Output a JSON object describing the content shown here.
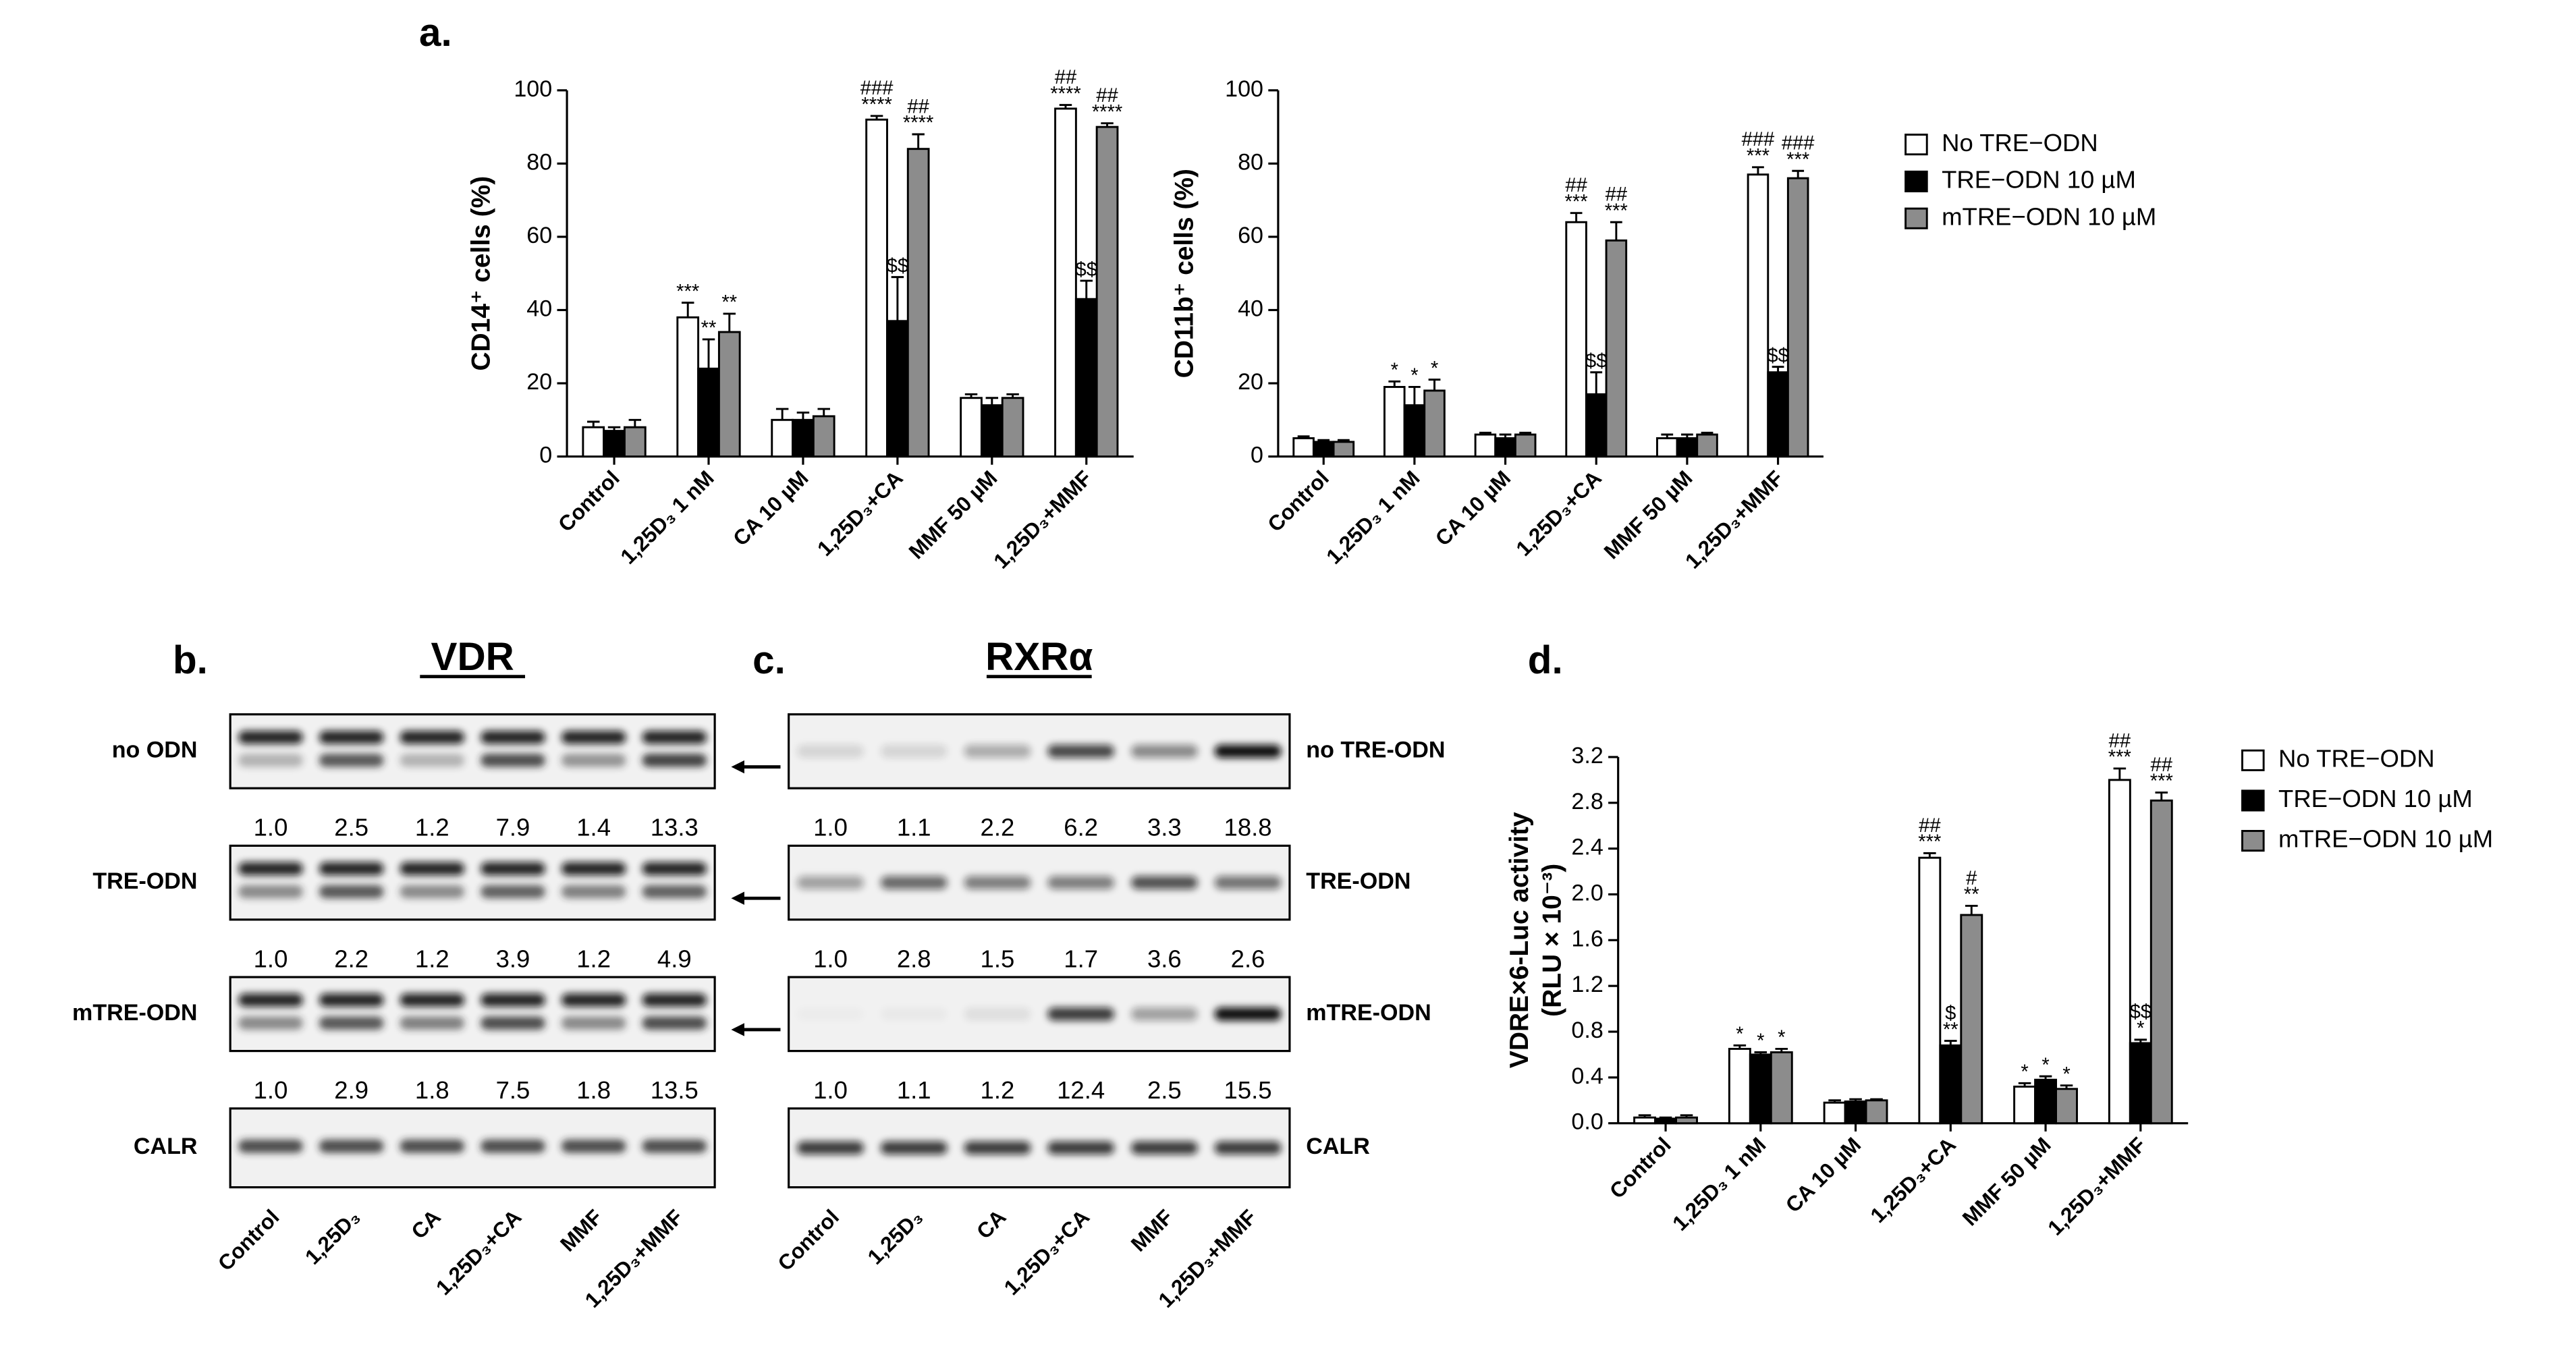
{
  "panel_labels": {
    "a": "a.",
    "b": "b.",
    "c": "c.",
    "d": "d."
  },
  "chart_data": [
    {
      "type": "bar",
      "ylabel": "CD14⁺ cells (%)",
      "categories": [
        "Control",
        "1,25D₃ 1 nM",
        "CA 10 µM",
        "1,25D₃+CA",
        "MMF 50 µM",
        "1,25D₃+MMF"
      ],
      "series": [
        {
          "color": "#ffffff",
          "values": [
            8,
            38,
            10,
            92,
            16,
            95
          ],
          "errors": [
            1.5,
            4,
            3,
            1,
            1,
            1
          ],
          "labels": [
            [],
            [
              "***"
            ],
            [],
            [
              "###",
              "****"
            ],
            [],
            [
              "##",
              "****"
            ]
          ]
        },
        {
          "color": "#000000",
          "values": [
            7,
            24,
            10,
            37,
            14,
            43
          ],
          "errors": [
            1,
            8,
            2,
            12,
            2,
            5
          ],
          "labels": [
            [],
            [
              "**"
            ],
            [],
            [
              "$$"
            ],
            [],
            [
              "$$"
            ]
          ]
        },
        {
          "color": "#8c8c8c",
          "values": [
            8,
            34,
            11,
            84,
            16,
            90
          ],
          "errors": [
            2,
            5,
            2,
            4,
            1,
            1
          ],
          "labels": [
            [],
            [
              "**"
            ],
            [],
            [
              "##",
              "****"
            ],
            [],
            [
              "##",
              "****"
            ]
          ]
        }
      ],
      "ylim": [
        0,
        100
      ],
      "yticks": [
        0,
        20,
        40,
        60,
        80,
        100
      ]
    },
    {
      "type": "bar",
      "ylabel": "CD11b⁺ cells (%)",
      "categories": [
        "Control",
        "1,25D₃ 1 nM",
        "CA 10 µM",
        "1,25D₃+CA",
        "MMF 50 µM",
        "1,25D₃+MMF"
      ],
      "series": [
        {
          "name": "No TRE−ODN",
          "color": "#ffffff",
          "values": [
            5,
            19,
            6,
            64,
            5,
            77
          ],
          "errors": [
            0.5,
            1.5,
            0.5,
            2.5,
            1,
            2
          ],
          "labels": [
            [],
            [
              "*"
            ],
            [],
            [
              "##",
              "***"
            ],
            [],
            [
              "###",
              "***"
            ]
          ]
        },
        {
          "name": "TRE−ODN 10 µM",
          "color": "#000000",
          "values": [
            4,
            14,
            5,
            17,
            5,
            23
          ],
          "errors": [
            0.5,
            5,
            1,
            6,
            1,
            1.5
          ],
          "labels": [
            [],
            [
              "*"
            ],
            [],
            [
              "$$"
            ],
            [],
            [
              "$$"
            ]
          ]
        },
        {
          "name": "mTRE−ODN 10 µM",
          "color": "#8c8c8c",
          "values": [
            4,
            18,
            6,
            59,
            6,
            76
          ],
          "errors": [
            0.5,
            3,
            0.5,
            5,
            0.5,
            2
          ],
          "labels": [
            [],
            [
              "*"
            ],
            [],
            [
              "##",
              "***"
            ],
            [],
            [
              "###",
              "***"
            ]
          ]
        }
      ],
      "ylim": [
        0,
        100
      ],
      "yticks": [
        0,
        20,
        40,
        60,
        80,
        100
      ]
    },
    {
      "type": "bar",
      "ylabel": [
        "VDRE×6-Luc activity",
        "(RLU × 10⁻³)"
      ],
      "categories": [
        "Control",
        "1,25D₃ 1 nM",
        "CA 10 µM",
        "1,25D₃+CA",
        "MMF 50 µM",
        "1,25D₃+MMF"
      ],
      "series": [
        {
          "name": "No TRE−ODN",
          "color": "#ffffff",
          "values": [
            0.05,
            0.65,
            0.18,
            2.32,
            0.32,
            3.0
          ],
          "errors": [
            0.02,
            0.03,
            0.02,
            0.04,
            0.03,
            0.1
          ],
          "labels": [
            [],
            [
              "*"
            ],
            [],
            [
              "##",
              "***"
            ],
            [
              "*"
            ],
            [
              "##",
              "***"
            ]
          ]
        },
        {
          "name": "TRE−ODN 10 µM",
          "color": "#000000",
          "values": [
            0.04,
            0.6,
            0.19,
            0.68,
            0.38,
            0.7
          ],
          "errors": [
            0.01,
            0.02,
            0.02,
            0.04,
            0.03,
            0.03
          ],
          "labels": [
            [],
            [
              "*"
            ],
            [],
            [
              "$",
              "**"
            ],
            [
              "*"
            ],
            [
              "$$",
              "*"
            ]
          ]
        },
        {
          "name": "mTRE−ODN 10 µM",
          "color": "#8c8c8c",
          "values": [
            0.05,
            0.62,
            0.2,
            1.82,
            0.3,
            2.82
          ],
          "errors": [
            0.02,
            0.03,
            0.01,
            0.08,
            0.03,
            0.07
          ],
          "labels": [
            [],
            [
              "*"
            ],
            [],
            [
              "#",
              "**"
            ],
            [
              "*"
            ],
            [
              "##",
              "***"
            ]
          ]
        }
      ],
      "ylim": [
        0,
        3.2
      ],
      "yticks": [
        {
          "value": 0,
          "label": "0.0"
        },
        0.4,
        0.8,
        1.2,
        1.6,
        {
          "value": 2,
          "label": "2.0"
        },
        2.4,
        2.8,
        3.2
      ]
    }
  ],
  "blots": [
    {
      "title": "VDR",
      "rows": [
        {
          "label": "no ODN",
          "quant": [
            "1.0",
            "2.5",
            "1.2",
            "7.9",
            "1.4",
            "13.3"
          ]
        },
        {
          "label": "TRE-ODN",
          "quant": [
            "1.0",
            "2.2",
            "1.2",
            "3.9",
            "1.2",
            "4.9"
          ]
        },
        {
          "label": "mTRE-ODN",
          "quant": [
            "1.0",
            "2.9",
            "1.8",
            "7.5",
            "1.8",
            "13.5"
          ]
        },
        {
          "label": "CALR"
        }
      ],
      "lanes": [
        "Control",
        "1,25D₃",
        "CA",
        "1,25D₃+CA",
        "MMF",
        "1,25D₃+MMF"
      ]
    },
    {
      "title": "RXRα",
      "rows": [
        {
          "label": "no TRE-ODN",
          "quant": [
            "1.0",
            "1.1",
            "2.2",
            "6.2",
            "3.3",
            "18.8"
          ]
        },
        {
          "label": "TRE-ODN",
          "quant": [
            "1.0",
            "2.8",
            "1.5",
            "1.7",
            "3.6",
            "2.6"
          ]
        },
        {
          "label": "mTRE-ODN",
          "quant": [
            "1.0",
            "1.1",
            "1.2",
            "12.4",
            "2.5",
            "15.5"
          ]
        },
        {
          "label": "CALR"
        }
      ],
      "lanes": [
        "Control",
        "1,25D₃",
        "CA",
        "1,25D₃+CA",
        "MMF",
        "1,25D₃+MMF"
      ]
    }
  ]
}
